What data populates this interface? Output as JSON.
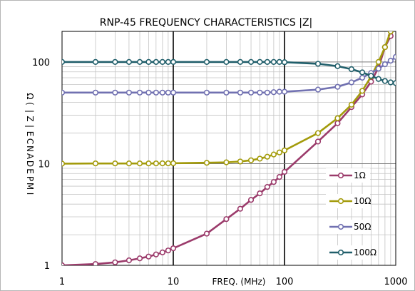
{
  "chart_data": {
    "type": "line",
    "title": "RNP-45  FREQUENCY CHARACTERISTICS |Z|",
    "xlabel": "FREQ. (MHz)",
    "ylabel_chars": [
      "Ω",
      "(",
      "|",
      "Z",
      "|",
      "E",
      "C",
      "N",
      "A",
      "D",
      "E",
      "P",
      "M",
      "I"
    ],
    "xscale": "log",
    "yscale": "log",
    "xlim": [
      1,
      1000
    ],
    "ylim": [
      1,
      200
    ],
    "x_ticks": [
      {
        "value": 1,
        "label": "1"
      },
      {
        "value": 10,
        "label": "10"
      },
      {
        "value": 100,
        "label": "100"
      },
      {
        "value": 1000,
        "label": "1000"
      }
    ],
    "y_ticks": [
      {
        "value": 1,
        "label": "1"
      },
      {
        "value": 10,
        "label": "10"
      },
      {
        "value": 100,
        "label": "100"
      }
    ],
    "grid": true,
    "legend_position": "right",
    "series": [
      {
        "name": "1Ω",
        "color": "#9b3b6b",
        "x": [
          1,
          2,
          3,
          4,
          5,
          6,
          7,
          8,
          9,
          10,
          20,
          30,
          40,
          50,
          60,
          70,
          80,
          90,
          100,
          200,
          300,
          400,
          500,
          600,
          700,
          800,
          900,
          1000
        ],
        "y": [
          1.0,
          1.03,
          1.07,
          1.12,
          1.17,
          1.22,
          1.28,
          1.34,
          1.4,
          1.47,
          2.05,
          2.85,
          3.6,
          4.4,
          5.1,
          5.9,
          6.6,
          7.4,
          8.3,
          16.5,
          25,
          36,
          48,
          64,
          88,
          140,
          180,
          240
        ]
      },
      {
        "name": "10Ω",
        "color": "#a39b0b",
        "x": [
          1,
          2,
          3,
          4,
          5,
          6,
          7,
          8,
          9,
          10,
          20,
          30,
          40,
          50,
          60,
          70,
          80,
          90,
          100,
          200,
          300,
          400,
          500,
          600,
          700,
          800,
          900,
          1000
        ],
        "y": [
          10,
          10.05,
          10.05,
          10.05,
          10.05,
          10.05,
          10.06,
          10.07,
          10.08,
          10.1,
          10.2,
          10.3,
          10.5,
          10.8,
          11.2,
          11.7,
          12.3,
          12.9,
          13.5,
          20,
          28,
          38,
          52,
          72,
          100,
          140,
          200,
          260
        ]
      },
      {
        "name": "50Ω",
        "color": "#7171b1",
        "x": [
          1,
          2,
          3,
          4,
          5,
          6,
          7,
          8,
          9,
          10,
          20,
          30,
          40,
          50,
          60,
          70,
          80,
          90,
          100,
          200,
          300,
          400,
          500,
          600,
          700,
          800,
          900,
          1000
        ],
        "y": [
          50,
          50,
          50,
          50,
          50,
          50,
          50,
          50,
          50,
          50,
          50,
          50,
          50,
          50,
          50,
          50,
          50.5,
          51,
          51,
          53.5,
          57,
          63,
          70,
          78,
          86,
          95,
          103,
          112
        ]
      },
      {
        "name": "100Ω",
        "color": "#215f6b",
        "x": [
          1,
          2,
          3,
          4,
          5,
          6,
          7,
          8,
          9,
          10,
          20,
          30,
          40,
          50,
          60,
          70,
          80,
          90,
          100,
          200,
          300,
          400,
          500,
          600,
          700,
          800,
          900,
          1000
        ],
        "y": [
          100,
          100,
          100,
          100,
          100,
          100,
          100,
          100,
          100,
          100,
          100,
          100,
          100,
          100,
          100,
          100,
          100,
          100,
          99.5,
          96,
          91,
          85,
          79,
          73,
          68,
          65,
          63,
          62
        ]
      }
    ]
  }
}
